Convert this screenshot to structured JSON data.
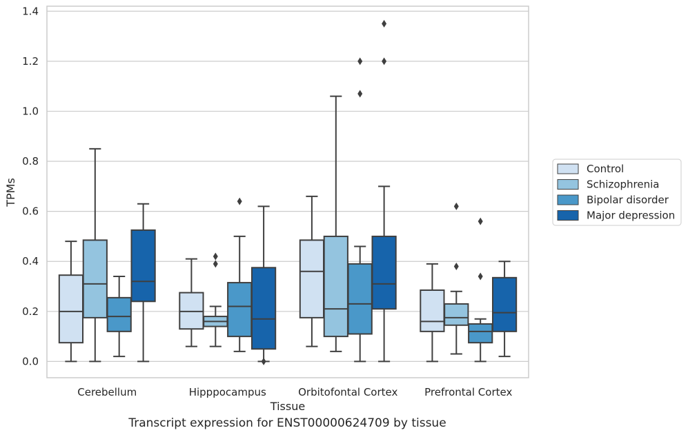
{
  "caption": "Transcript expression for ENST00000624709 by tissue",
  "chart_data": {
    "type": "box",
    "xlabel": "Tissue",
    "ylabel": "TPMs",
    "ylim": [
      -0.065,
      1.42
    ],
    "yticks": [
      "0.0",
      "0.2",
      "0.4",
      "0.6",
      "0.8",
      "1.0",
      "1.2",
      "1.4"
    ],
    "grid": "horizontal",
    "legend_position": "right",
    "categories": [
      "Cerebellum",
      "Hipppocampus",
      "Orbitofontal Cortex",
      "Prefrontal Cortex"
    ],
    "series": [
      {
        "name": "Control",
        "color": "#d0e1f2",
        "boxes": [
          {
            "whisker_low": 0.0,
            "q1": 0.075,
            "median": 0.2,
            "q3": 0.345,
            "whisker_high": 0.48,
            "outliers": []
          },
          {
            "whisker_low": 0.06,
            "q1": 0.13,
            "median": 0.2,
            "q3": 0.275,
            "whisker_high": 0.41,
            "outliers": []
          },
          {
            "whisker_low": 0.06,
            "q1": 0.175,
            "median": 0.36,
            "q3": 0.485,
            "whisker_high": 0.66,
            "outliers": []
          },
          {
            "whisker_low": 0.0,
            "q1": 0.12,
            "median": 0.16,
            "q3": 0.285,
            "whisker_high": 0.39,
            "outliers": []
          }
        ]
      },
      {
        "name": "Schizophrenia",
        "color": "#94c4df",
        "boxes": [
          {
            "whisker_low": 0.0,
            "q1": 0.175,
            "median": 0.31,
            "q3": 0.485,
            "whisker_high": 0.85,
            "outliers": []
          },
          {
            "whisker_low": 0.06,
            "q1": 0.14,
            "median": 0.16,
            "q3": 0.18,
            "whisker_high": 0.22,
            "outliers": [
              0.39,
              0.42
            ]
          },
          {
            "whisker_low": 0.04,
            "q1": 0.1,
            "median": 0.21,
            "q3": 0.5,
            "whisker_high": 1.06,
            "outliers": []
          },
          {
            "whisker_low": 0.03,
            "q1": 0.145,
            "median": 0.175,
            "q3": 0.23,
            "whisker_high": 0.28,
            "outliers": [
              0.38,
              0.62
            ]
          }
        ]
      },
      {
        "name": "Bipolar disorder",
        "color": "#4a98c9",
        "boxes": [
          {
            "whisker_low": 0.02,
            "q1": 0.12,
            "median": 0.18,
            "q3": 0.255,
            "whisker_high": 0.34,
            "outliers": []
          },
          {
            "whisker_low": 0.04,
            "q1": 0.1,
            "median": 0.22,
            "q3": 0.315,
            "whisker_high": 0.5,
            "outliers": [
              0.64
            ]
          },
          {
            "whisker_low": 0.0,
            "q1": 0.11,
            "median": 0.23,
            "q3": 0.39,
            "whisker_high": 0.46,
            "outliers": [
              1.07,
              1.2
            ]
          },
          {
            "whisker_low": 0.0,
            "q1": 0.075,
            "median": 0.12,
            "q3": 0.15,
            "whisker_high": 0.17,
            "outliers": [
              0.34,
              0.56
            ]
          }
        ]
      },
      {
        "name": "Major depression",
        "color": "#1764ab",
        "boxes": [
          {
            "whisker_low": 0.0,
            "q1": 0.24,
            "median": 0.32,
            "q3": 0.525,
            "whisker_high": 0.63,
            "outliers": []
          },
          {
            "whisker_low": 0.0,
            "q1": 0.05,
            "median": 0.17,
            "q3": 0.375,
            "whisker_high": 0.62,
            "outliers": [
              0.0
            ]
          },
          {
            "whisker_low": 0.0,
            "q1": 0.21,
            "median": 0.31,
            "q3": 0.5,
            "whisker_high": 0.7,
            "outliers": [
              1.2,
              1.35
            ]
          },
          {
            "whisker_low": 0.02,
            "q1": 0.12,
            "median": 0.195,
            "q3": 0.335,
            "whisker_high": 0.4,
            "outliers": []
          }
        ]
      }
    ]
  }
}
